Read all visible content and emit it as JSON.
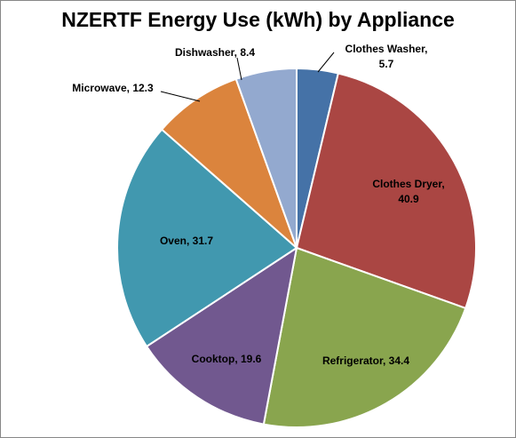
{
  "chart_data": {
    "type": "pie",
    "title": "NZERTF Energy Use (kWh) by Appliance",
    "slices": [
      {
        "name": "Clothes Washer",
        "value": 5.7,
        "color": "#4572A7",
        "label_lines": [
          "Clothes Washer,",
          "5.7"
        ]
      },
      {
        "name": "Clothes Dryer",
        "value": 40.9,
        "color": "#AA4643",
        "label_lines": [
          "Clothes Dryer,",
          "40.9"
        ]
      },
      {
        "name": "Refrigerator",
        "value": 34.4,
        "color": "#89A54E",
        "label_lines": [
          "Refrigerator, 34.4"
        ]
      },
      {
        "name": "Cooktop",
        "value": 19.6,
        "color": "#71588F",
        "label_lines": [
          "Cooktop, 19.6"
        ]
      },
      {
        "name": "Oven",
        "value": 31.7,
        "color": "#4198AF",
        "label_lines": [
          "Oven, 31.7"
        ]
      },
      {
        "name": "Microwave",
        "value": 12.3,
        "color": "#DB843D",
        "label_lines": [
          "Microwave, 12.3"
        ]
      },
      {
        "name": "Dishwasher",
        "value": 8.4,
        "color": "#93A9CF",
        "label_lines": [
          "Dishwasher, 8.4"
        ]
      }
    ],
    "legend": "none"
  }
}
